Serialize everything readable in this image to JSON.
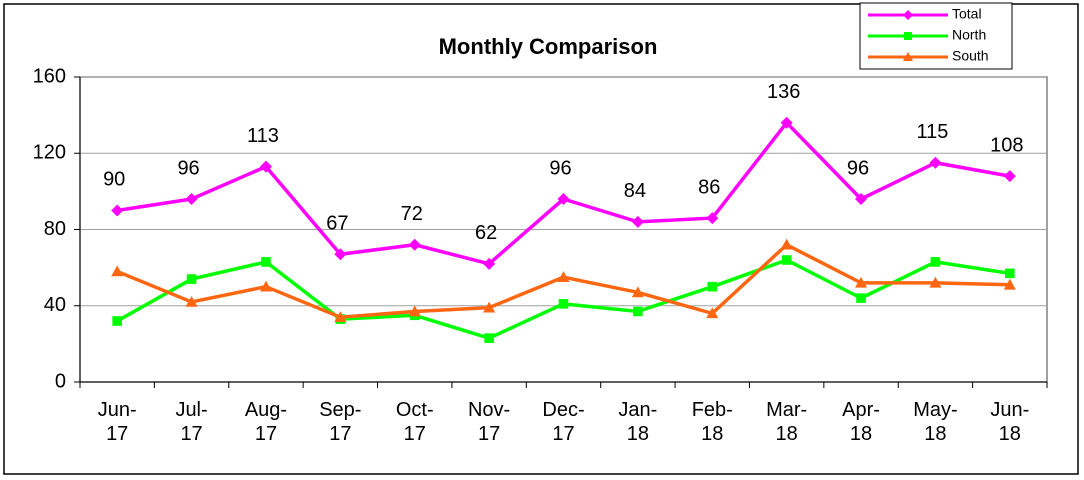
{
  "chart_data": {
    "type": "line",
    "title": "Monthly Comparison",
    "categories": [
      "Jun-17",
      "Jul-17",
      "Aug-17",
      "Sep-17",
      "Oct-17",
      "Nov-17",
      "Dec-17",
      "Jan-18",
      "Feb-18",
      "Mar-18",
      "Apr-18",
      "May-18",
      "Jun-18"
    ],
    "series": [
      {
        "name": "Total",
        "color": "#ff00ff",
        "marker": "diamond",
        "data_labels": true,
        "values": [
          90,
          96,
          113,
          67,
          72,
          62,
          96,
          84,
          86,
          136,
          96,
          115,
          108
        ]
      },
      {
        "name": "North",
        "color": "#00ff00",
        "marker": "square",
        "values": [
          32,
          54,
          63,
          33,
          35,
          23,
          41,
          37,
          50,
          64,
          44,
          63,
          57
        ]
      },
      {
        "name": "South",
        "color": "#ff6611",
        "marker": "triangle",
        "values": [
          58,
          42,
          50,
          34,
          37,
          39,
          55,
          47,
          36,
          72,
          52,
          52,
          51
        ]
      }
    ],
    "ylim": [
      0,
      160
    ],
    "yticks": [
      0,
      40,
      80,
      120,
      160
    ],
    "grid": true,
    "legend": "upper right"
  }
}
